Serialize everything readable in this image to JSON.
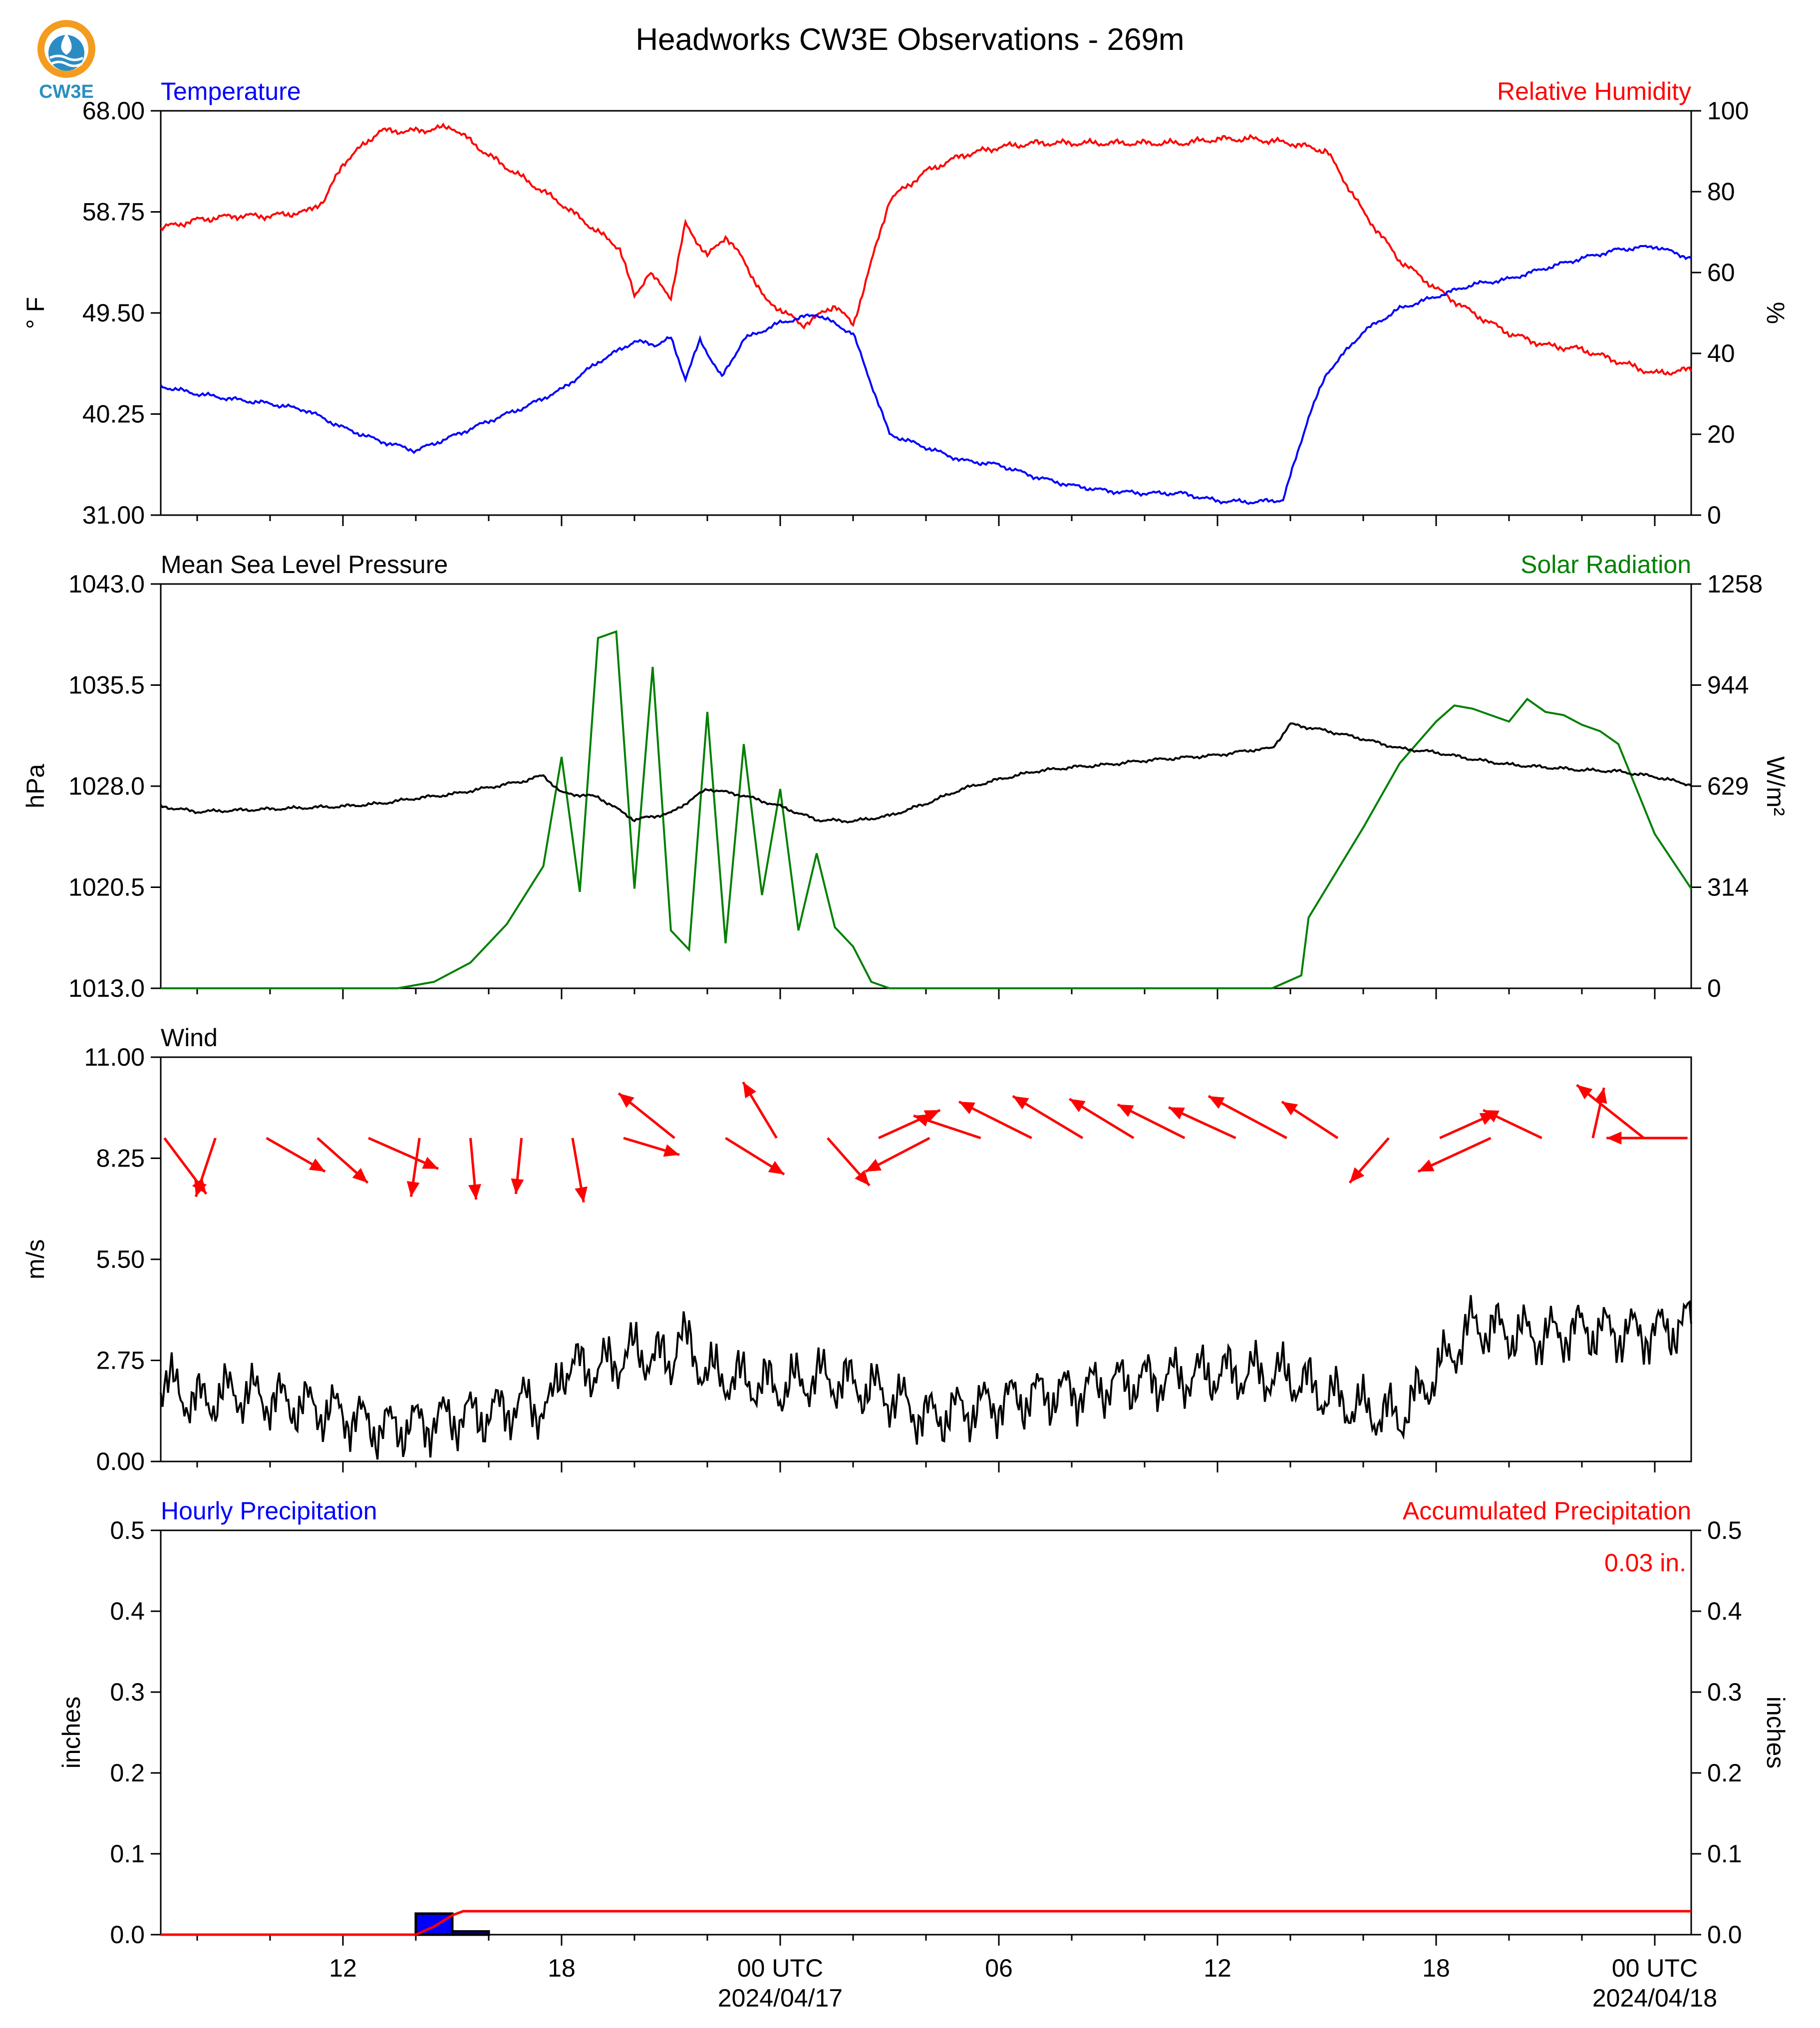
{
  "figure": {
    "title": "Headworks CW3E Observations - 269m",
    "logo_text": "CW3E"
  },
  "x_axis": {
    "start_hour": 7,
    "end_hour": 49,
    "major_ticks": [
      {
        "hour": 12,
        "label": "12",
        "date": ""
      },
      {
        "hour": 18,
        "label": "18",
        "date": ""
      },
      {
        "hour": 24,
        "label": "00 UTC",
        "date": "2024/04/17"
      },
      {
        "hour": 30,
        "label": "06",
        "date": ""
      },
      {
        "hour": 36,
        "label": "12",
        "date": ""
      },
      {
        "hour": 42,
        "label": "18",
        "date": ""
      },
      {
        "hour": 48,
        "label": "00 UTC",
        "date": "2024/04/18"
      }
    ],
    "minor_tick_step_hours": 2
  },
  "chart_data": [
    {
      "type": "line",
      "panel": "temperature_humidity",
      "left_title": "Temperature",
      "right_title": "Relative Humidity",
      "ylabel_left": "° F",
      "ylabel_right": "%",
      "ylim_left": [
        31.0,
        68.0
      ],
      "ylim_right": [
        0,
        100
      ],
      "yticks_left": [
        "31.00",
        "40.25",
        "49.50",
        "58.75",
        "68.00"
      ],
      "yticks_right": [
        "0",
        "20",
        "40",
        "60",
        "80",
        "100"
      ],
      "series": [
        {
          "name": "Temperature",
          "axis": "left",
          "color": "#0000ff",
          "x": [
            7,
            8,
            9,
            10,
            11,
            12,
            13,
            14,
            15,
            16,
            17,
            18,
            19,
            20,
            20.6,
            21,
            21.4,
            21.8,
            22.4,
            23,
            24,
            25,
            26,
            27,
            28,
            29,
            30,
            31,
            32,
            33,
            34,
            35,
            36,
            37,
            37.8,
            38.5,
            39,
            40,
            41,
            42,
            43,
            44,
            45,
            46,
            47,
            48,
            49
          ],
          "y": [
            42.8,
            42.1,
            41.6,
            41.2,
            40.6,
            39.0,
            37.8,
            36.9,
            38.2,
            39.6,
            40.9,
            42.5,
            45.0,
            46.9,
            46.6,
            47.2,
            43.5,
            47.0,
            43.6,
            47.1,
            48.6,
            49.4,
            47.6,
            38.4,
            37.2,
            36.0,
            35.6,
            34.5,
            33.7,
            33.2,
            33.0,
            33.0,
            32.3,
            32.2,
            32.4,
            40.0,
            44.0,
            47.8,
            49.9,
            51.0,
            52.1,
            52.6,
            53.6,
            54.5,
            55.3,
            55.6,
            54.5
          ]
        },
        {
          "name": "Relative Humidity",
          "axis": "right",
          "color": "#ff0000",
          "x": [
            7,
            8,
            9,
            10,
            11,
            11.5,
            12,
            13,
            14,
            15,
            16,
            17,
            18,
            19,
            19.6,
            20,
            20.4,
            21,
            21.4,
            22,
            22.5,
            23,
            23.6,
            24,
            24.6,
            25,
            25.5,
            26,
            27,
            28,
            29,
            30,
            31,
            32,
            33,
            34,
            35,
            36,
            37,
            38,
            39,
            40,
            41,
            42,
            43,
            44,
            45,
            46,
            47,
            48,
            49
          ],
          "y": [
            71,
            73,
            74,
            74,
            75,
            78,
            87,
            95,
            95,
            96,
            89,
            83,
            77,
            70,
            66,
            54,
            60,
            54,
            72,
            64,
            69,
            63,
            53,
            51,
            47,
            49,
            52,
            47,
            78,
            85,
            89,
            91,
            92,
            92,
            92,
            92,
            92,
            93,
            93,
            92,
            90,
            75,
            63,
            56,
            50,
            45,
            42,
            41,
            38,
            35,
            36
          ]
        }
      ]
    },
    {
      "type": "line",
      "panel": "pressure_solar",
      "left_title": "Mean Sea Level Pressure",
      "right_title": "Solar Radiation",
      "ylabel_left": "hPa",
      "ylabel_right": "W/m²",
      "ylim_left": [
        1013.0,
        1043.0
      ],
      "ylim_right": [
        0,
        1258
      ],
      "yticks_left": [
        "1013.0",
        "1020.5",
        "1028.0",
        "1035.5",
        "1043.0"
      ],
      "yticks_right": [
        "0",
        "314",
        "629",
        "944",
        "1258"
      ],
      "series": [
        {
          "name": "Mean Sea Level Pressure",
          "axis": "left",
          "color": "#000000",
          "x": [
            7,
            8,
            9,
            10,
            11,
            12,
            13,
            14,
            15,
            16,
            17,
            17.5,
            18,
            19,
            20,
            21,
            22,
            23,
            24,
            25,
            26,
            27,
            28,
            29,
            30,
            31,
            32,
            33,
            34,
            35,
            36,
            37,
            37.5,
            38,
            39,
            40,
            41,
            42,
            43,
            44,
            45,
            46,
            47,
            48,
            49
          ],
          "y": [
            1026.5,
            1026.1,
            1026.2,
            1026.3,
            1026.4,
            1026.5,
            1026.7,
            1027.1,
            1027.4,
            1027.9,
            1028.4,
            1028.8,
            1027.5,
            1027.2,
            1025.5,
            1026.0,
            1027.8,
            1027.3,
            1026.5,
            1025.5,
            1025.4,
            1025.8,
            1026.7,
            1027.8,
            1028.5,
            1029.1,
            1029.4,
            1029.6,
            1029.9,
            1030.1,
            1030.3,
            1030.7,
            1030.8,
            1032.6,
            1032.1,
            1031.5,
            1030.8,
            1030.5,
            1030.0,
            1029.6,
            1029.4,
            1029.2,
            1029.1,
            1028.7,
            1028.1
          ]
        },
        {
          "name": "Solar Radiation",
          "axis": "right",
          "color": "#008000",
          "x": [
            7,
            12,
            13.5,
            14.5,
            15.5,
            16.5,
            17.5,
            18,
            18.5,
            19,
            19.5,
            20,
            20.5,
            21,
            21.5,
            22,
            22.5,
            23,
            23.5,
            24,
            24.5,
            25,
            25.5,
            26,
            26.5,
            27,
            27.5,
            28,
            36,
            37.5,
            38.3,
            38.5,
            40,
            41,
            42,
            42.5,
            43,
            43.5,
            44,
            44.5,
            45,
            45.5,
            46,
            46.5,
            47,
            47.5,
            48,
            49
          ],
          "y": [
            0,
            0,
            0,
            20,
            80,
            200,
            380,
            720,
            300,
            1090,
            1110,
            310,
            1000,
            180,
            120,
            860,
            140,
            760,
            290,
            620,
            180,
            420,
            190,
            130,
            20,
            0,
            0,
            0,
            0,
            0,
            40,
            220,
            500,
            700,
            830,
            880,
            870,
            850,
            830,
            900,
            860,
            850,
            820,
            800,
            760,
            620,
            480,
            310
          ]
        }
      ]
    },
    {
      "type": "line",
      "panel": "wind",
      "left_title": "Wind",
      "ylabel_left": "m/s",
      "ylim_left": [
        0.0,
        11.0
      ],
      "yticks_left": [
        "0.00",
        "2.75",
        "5.50",
        "8.25",
        "11.00"
      ],
      "series": [
        {
          "name": "Wind Speed",
          "axis": "left",
          "color": "#000000",
          "x": [
            7,
            8,
            9,
            10,
            11,
            12,
            13,
            14,
            15,
            16,
            17,
            17.7,
            18,
            19,
            20,
            21,
            21.2,
            22,
            23,
            24,
            25,
            26,
            27,
            28,
            29,
            30,
            31,
            32,
            33,
            34,
            35,
            36,
            37,
            38,
            39,
            40,
            41,
            42,
            43,
            44,
            45,
            46,
            47,
            48,
            49
          ],
          "y": [
            2.2,
            1.6,
            1.9,
            1.7,
            1.5,
            1.3,
            0.9,
            1.0,
            1.2,
            1.3,
            1.6,
            1.4,
            2.6,
            2.5,
            3.0,
            2.7,
            3.5,
            2.4,
            2.2,
            2.0,
            2.3,
            2.1,
            1.8,
            1.2,
            1.4,
            1.6,
            1.8,
            1.9,
            2.1,
            2.2,
            2.3,
            2.4,
            2.4,
            2.3,
            1.8,
            1.4,
            1.2,
            2.4,
            3.7,
            3.5,
            3.4,
            3.6,
            3.5,
            3.5,
            3.8
          ]
        }
      ],
      "wind_vectors": {
        "color": "#ff0000",
        "x": [
          7.1,
          8.5,
          9.9,
          11.3,
          12.7,
          14.1,
          15.5,
          16.9,
          18.3,
          19.7,
          21.1,
          22.5,
          23.9,
          25.3,
          26.7,
          28.1,
          29.5,
          30.9,
          32.3,
          33.7,
          35.1,
          36.5,
          37.9,
          39.3,
          40.7,
          42.1,
          43.5,
          44.9,
          46.3,
          47.7,
          48.9
        ],
        "u": [
          1.5,
          -0.7,
          2.1,
          1.8,
          2.5,
          -0.3,
          0.2,
          -0.2,
          0.4,
          2.0,
          -2.0,
          2.1,
          -1.2,
          1.5,
          2.2,
          -2.3,
          -2.4,
          -2.6,
          -2.5,
          -2.3,
          -2.4,
          -2.4,
          -2.8,
          -2.0,
          -1.4,
          2.0,
          -2.6,
          -2.1,
          0.4,
          -2.4,
          -2.9
        ],
        "v": [
          -2.0,
          -2.1,
          -1.2,
          -1.6,
          -1.1,
          -2.1,
          -2.2,
          -2.0,
          -2.3,
          -0.6,
          1.6,
          -1.3,
          2.0,
          -1.7,
          1.0,
          -1.2,
          0.8,
          1.3,
          1.5,
          1.4,
          1.2,
          1.1,
          1.5,
          1.3,
          -1.6,
          0.9,
          -1.2,
          1.0,
          1.8,
          1.9,
          0.0
        ]
      }
    },
    {
      "type": "bar",
      "panel": "precipitation",
      "left_title": "Hourly Precipitation",
      "right_title": "Accumulated Precipitation",
      "ylabel_left": "inches",
      "ylabel_right": "inches",
      "ylim_left": [
        0.0,
        0.5
      ],
      "ylim_right": [
        0.0,
        0.5
      ],
      "yticks_left": [
        "0.0",
        "0.1",
        "0.2",
        "0.3",
        "0.4",
        "0.5"
      ],
      "yticks_right": [
        "0.0",
        "0.1",
        "0.2",
        "0.3",
        "0.4",
        "0.5"
      ],
      "total_label": "0.03 in.",
      "hourly": {
        "name": "Hourly Precipitation",
        "color": "#0000ff",
        "bins": [
          {
            "start": 14.0,
            "end": 15.0,
            "value": 0.026
          },
          {
            "start": 15.0,
            "end": 16.0,
            "value": 0.004
          }
        ]
      },
      "accumulated": {
        "name": "Accumulated Precipitation",
        "color": "#ff0000",
        "x": [
          7,
          14.0,
          14.5,
          15.0,
          15.3,
          16.0,
          49
        ],
        "y": [
          0.0,
          0.0,
          0.01,
          0.024,
          0.029,
          0.029,
          0.029
        ]
      }
    }
  ]
}
